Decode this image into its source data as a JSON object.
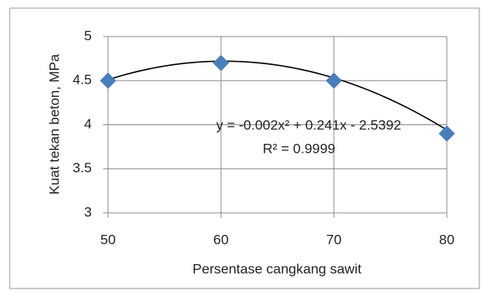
{
  "chart_data": {
    "type": "scatter",
    "x_label": "Persentase cangkang sawit",
    "y_label": "Kuat tekan beton, MPa",
    "x": [
      50,
      60,
      70,
      80
    ],
    "series": [
      {
        "color": "#4a7ebb",
        "values": [
          4.5,
          4.7,
          4.5,
          3.9
        ]
      }
    ],
    "xlim": [
      50,
      80
    ],
    "xticks": [
      50,
      60,
      70,
      80
    ],
    "ylim": [
      3,
      5
    ],
    "yticks": [
      3,
      {
        "value": 3.5,
        "label": "3.5"
      },
      4,
      {
        "value": 4.5,
        "label": "4.5"
      },
      5
    ],
    "grid": true,
    "trendline": {
      "equation": "y = -0.002x² + 0.241x - 2.5392",
      "coefficients": [
        -0.002,
        0.241,
        -2.5392
      ],
      "r_squared": "R² = 0.9999",
      "color": "#000000"
    }
  }
}
